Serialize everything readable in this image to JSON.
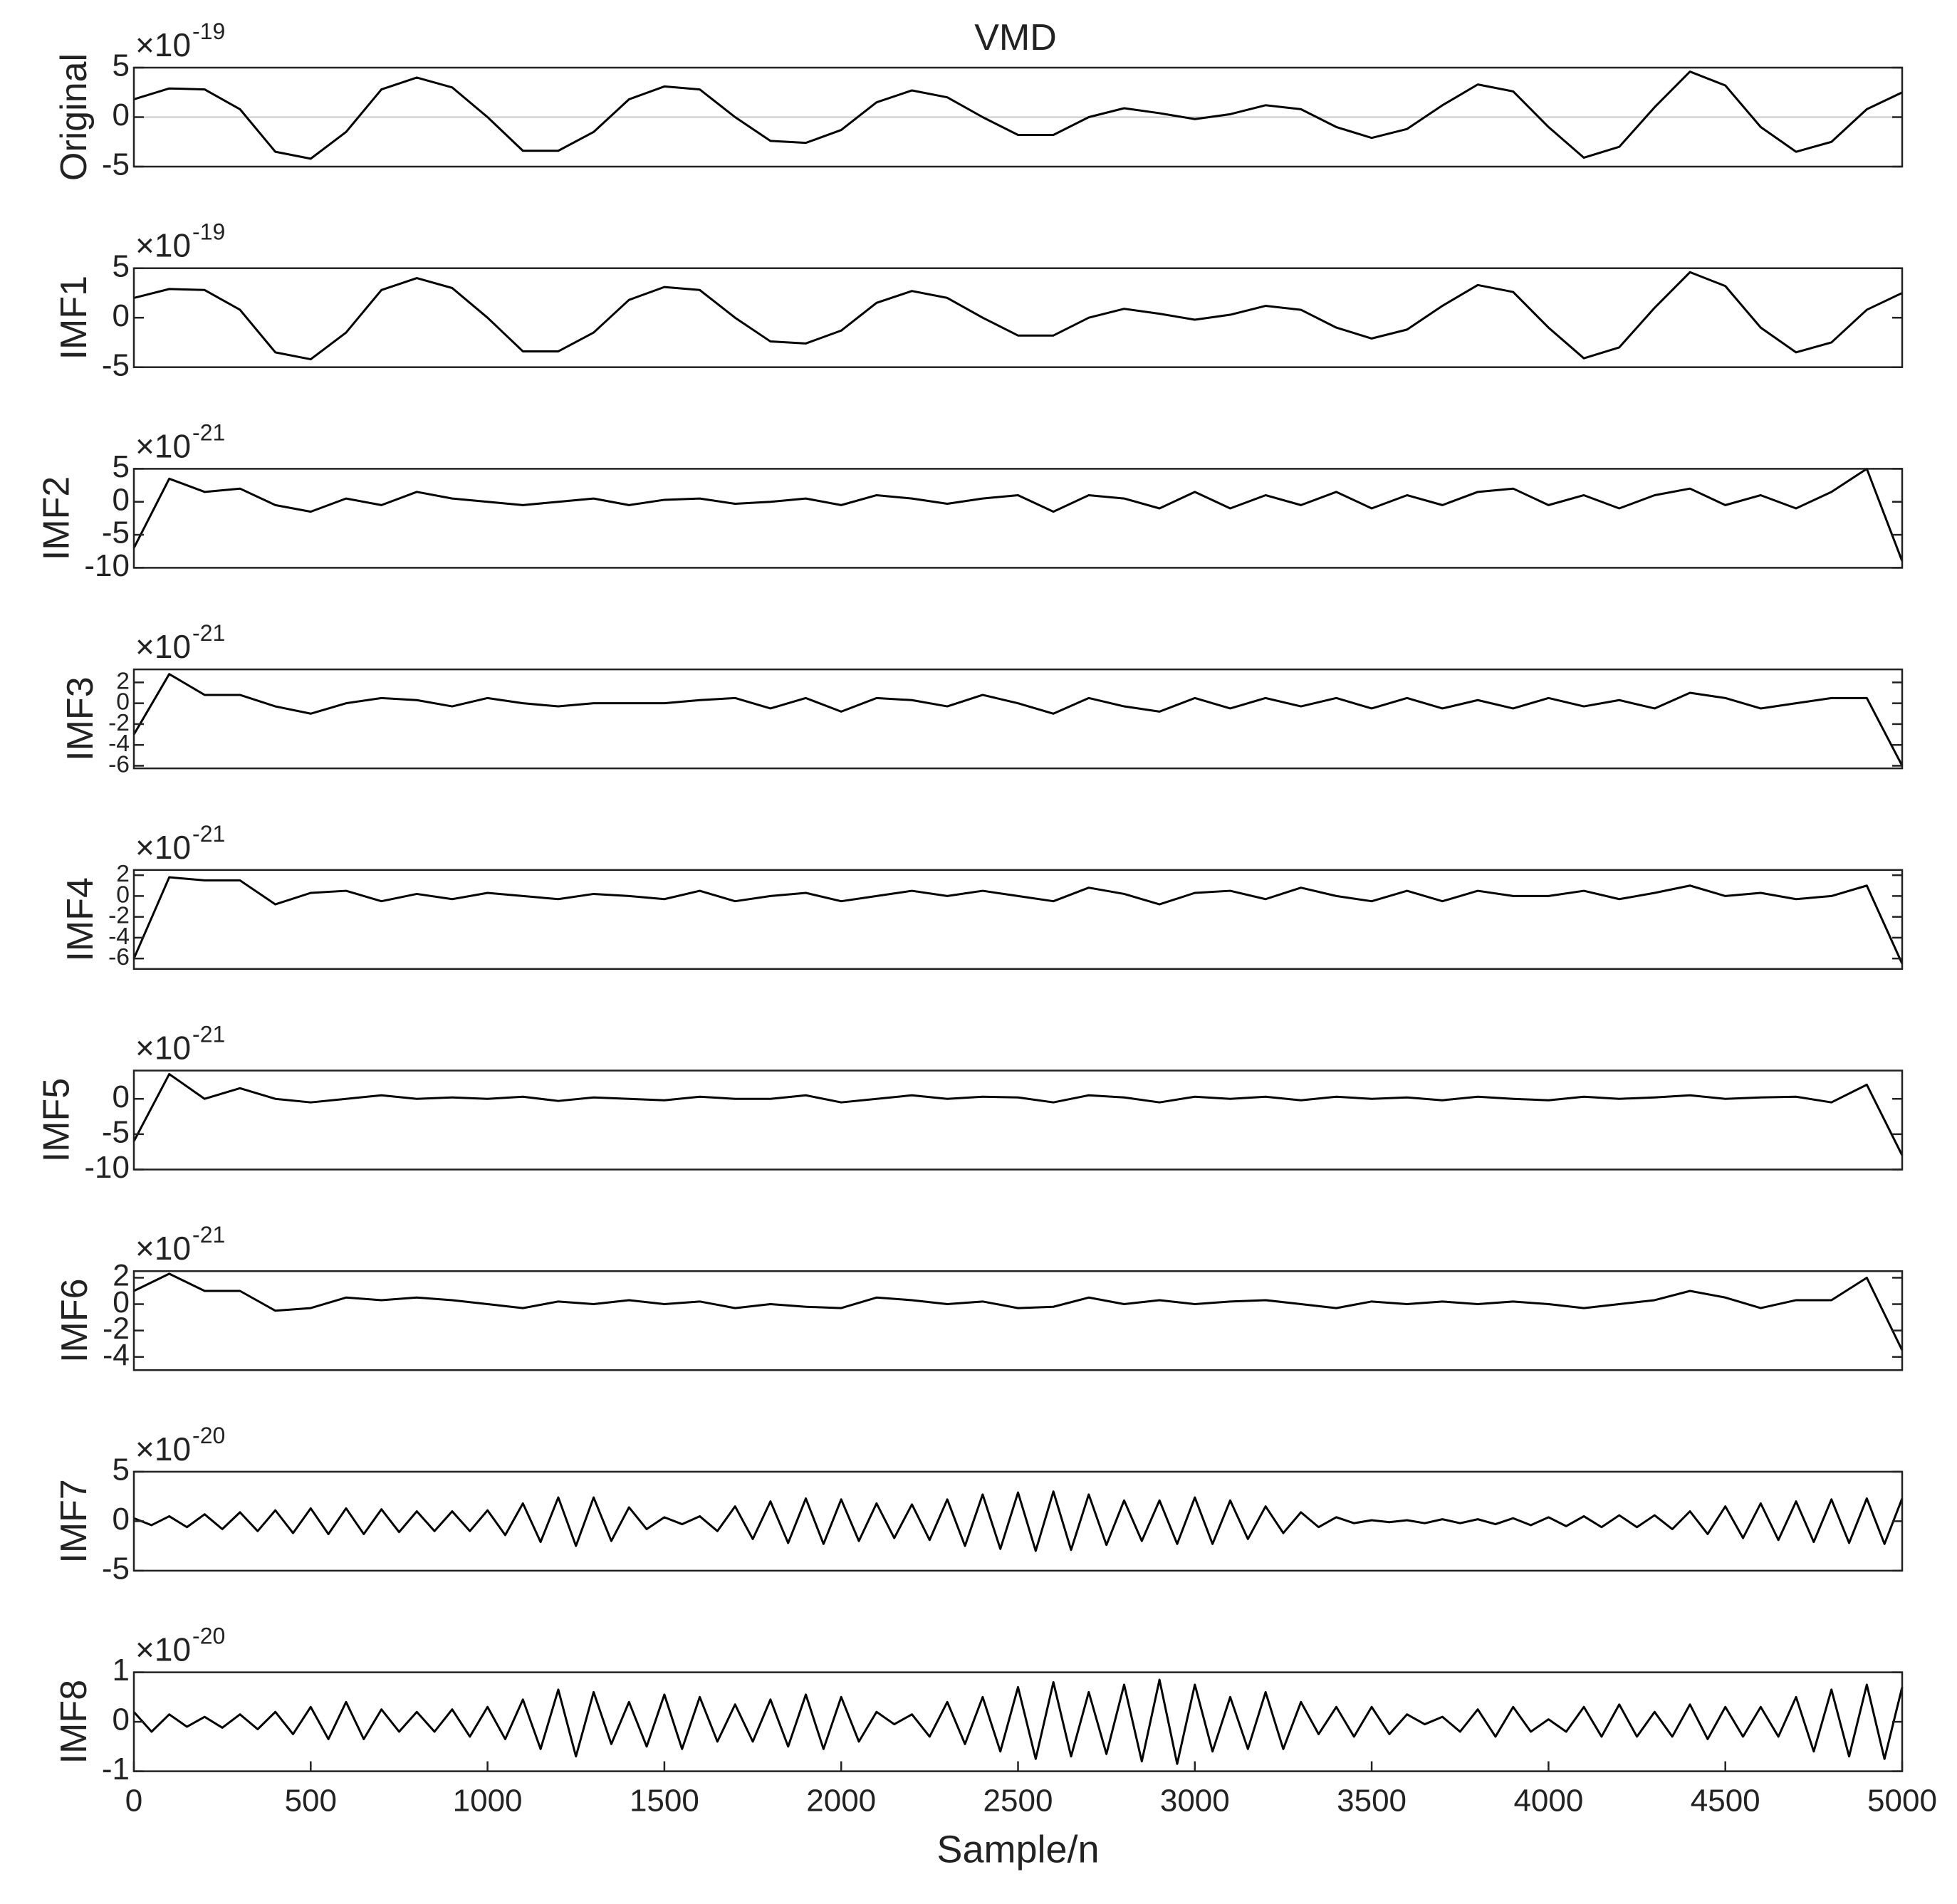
{
  "chart_data": [
    {
      "type": "line",
      "title": "VMD",
      "ylabel": "Original",
      "scale_base": "×10",
      "scale_exponent": "-19",
      "color": "#000000",
      "zero_line": true,
      "xlim": [
        0,
        5000
      ],
      "ylim": [
        -5,
        5
      ],
      "yticks": [
        -5,
        0,
        5
      ],
      "x": [
        0,
        100,
        200,
        300,
        400,
        500,
        600,
        700,
        800,
        900,
        1000,
        1100,
        1200,
        1300,
        1400,
        1500,
        1600,
        1700,
        1800,
        1900,
        2000,
        2100,
        2200,
        2300,
        2400,
        2500,
        2600,
        2700,
        2800,
        2900,
        3000,
        3100,
        3200,
        3300,
        3400,
        3500,
        3600,
        3700,
        3800,
        3900,
        4000,
        4100,
        4200,
        4300,
        4400,
        4500,
        4600,
        4700,
        4800,
        4900,
        5000
      ],
      "values": [
        1.8,
        2.9,
        2.8,
        0.8,
        -3.5,
        -4.2,
        -1.5,
        2.8,
        4.0,
        3.0,
        0,
        -3.4,
        -3.4,
        -1.5,
        1.8,
        3.1,
        2.8,
        0,
        -2.4,
        -2.6,
        -1.3,
        1.5,
        2.7,
        2.0,
        0,
        -1.8,
        -1.8,
        0,
        0.9,
        0.4,
        -0.2,
        0.3,
        1.2,
        0.8,
        -1.0,
        -2.1,
        -1.2,
        1.2,
        3.3,
        2.6,
        -1.0,
        -4.1,
        -3.0,
        1.0,
        4.6,
        3.2,
        -1.0,
        -3.5,
        -2.5,
        0.8,
        2.5
      ]
    },
    {
      "type": "line",
      "ylabel": "IMF1",
      "scale_base": "×10",
      "scale_exponent": "-19",
      "color": "#000000",
      "xlim": [
        0,
        5000
      ],
      "ylim": [
        -5,
        5
      ],
      "yticks": [
        -5,
        0,
        5
      ],
      "x": [
        0,
        100,
        200,
        300,
        400,
        500,
        600,
        700,
        800,
        900,
        1000,
        1100,
        1200,
        1300,
        1400,
        1500,
        1600,
        1700,
        1800,
        1900,
        2000,
        2100,
        2200,
        2300,
        2400,
        2500,
        2600,
        2700,
        2800,
        2900,
        3000,
        3100,
        3200,
        3300,
        3400,
        3500,
        3600,
        3700,
        3800,
        3900,
        4000,
        4100,
        4200,
        4300,
        4400,
        4500,
        4600,
        4700,
        4800,
        4900,
        5000
      ],
      "values": [
        2.0,
        2.9,
        2.8,
        0.8,
        -3.5,
        -4.2,
        -1.5,
        2.8,
        4.0,
        3.0,
        0,
        -3.4,
        -3.4,
        -1.5,
        1.8,
        3.1,
        2.8,
        0,
        -2.4,
        -2.6,
        -1.3,
        1.5,
        2.7,
        2.0,
        0,
        -1.8,
        -1.8,
        0,
        0.9,
        0.4,
        -0.2,
        0.3,
        1.2,
        0.8,
        -1.0,
        -2.1,
        -1.2,
        1.2,
        3.3,
        2.6,
        -1.0,
        -4.1,
        -3.0,
        1.0,
        4.6,
        3.2,
        -1.0,
        -3.5,
        -2.5,
        0.8,
        2.5
      ]
    },
    {
      "type": "line",
      "ylabel": "IMF2",
      "scale_base": "×10",
      "scale_exponent": "-21",
      "color": "#000000",
      "xlim": [
        0,
        5000
      ],
      "ylim": [
        -10,
        5
      ],
      "yticks": [
        -10,
        -5,
        0,
        5
      ],
      "x": [
        0,
        100,
        200,
        300,
        400,
        500,
        600,
        700,
        800,
        900,
        1000,
        1100,
        1200,
        1300,
        1400,
        1500,
        1600,
        1700,
        1800,
        1900,
        2000,
        2100,
        2200,
        2300,
        2400,
        2500,
        2600,
        2700,
        2800,
        2900,
        3000,
        3100,
        3200,
        3300,
        3400,
        3500,
        3600,
        3700,
        3800,
        3900,
        4000,
        4100,
        4200,
        4300,
        4400,
        4500,
        4600,
        4700,
        4800,
        4900,
        5000
      ],
      "values": [
        -7,
        3.5,
        1.5,
        2.0,
        -0.5,
        -1.5,
        0.5,
        -0.5,
        1.5,
        0.5,
        0,
        -0.5,
        0,
        0.5,
        -0.5,
        0.3,
        0.5,
        -0.3,
        0,
        0.5,
        -0.5,
        1.0,
        0.5,
        -0.3,
        0.5,
        1.0,
        -1.5,
        1.0,
        0.5,
        -1.0,
        1.5,
        -1.0,
        1.0,
        -0.5,
        1.5,
        -1.0,
        1.0,
        -0.5,
        1.5,
        2.0,
        -0.5,
        1.0,
        -1.0,
        1.0,
        2.0,
        -0.5,
        1.0,
        -1.0,
        1.5,
        5.0,
        -9
      ]
    },
    {
      "type": "line",
      "ylabel": "IMF3",
      "scale_base": "×10",
      "scale_exponent": "-21",
      "color": "#000000",
      "xlim": [
        0,
        5000
      ],
      "ylim": [
        -6.25,
        3.25
      ],
      "yticks": [
        -6,
        -4,
        -2,
        0,
        2
      ],
      "x": [
        0,
        100,
        200,
        300,
        400,
        500,
        600,
        700,
        800,
        900,
        1000,
        1100,
        1200,
        1300,
        1400,
        1500,
        1600,
        1700,
        1800,
        1900,
        2000,
        2100,
        2200,
        2300,
        2400,
        2500,
        2600,
        2700,
        2800,
        2900,
        3000,
        3100,
        3200,
        3300,
        3400,
        3500,
        3600,
        3700,
        3800,
        3900,
        4000,
        4100,
        4200,
        4300,
        4400,
        4500,
        4600,
        4700,
        4800,
        4900,
        5000
      ],
      "values": [
        -3,
        2.8,
        0.8,
        0.8,
        -0.3,
        -1.0,
        0,
        0.5,
        0.3,
        -0.3,
        0.5,
        0,
        -0.3,
        0,
        0,
        0,
        0.3,
        0.5,
        -0.5,
        0.5,
        -0.8,
        0.5,
        0.3,
        -0.3,
        0.8,
        0,
        -1.0,
        0.5,
        -0.3,
        -0.8,
        0.5,
        -0.5,
        0.5,
        -0.3,
        0.5,
        -0.5,
        0.5,
        -0.5,
        0.3,
        -0.5,
        0.5,
        -0.3,
        0.3,
        -0.5,
        1.0,
        0.5,
        -0.5,
        0,
        0.5,
        0.5,
        -6
      ]
    },
    {
      "type": "line",
      "ylabel": "IMF4",
      "scale_base": "×10",
      "scale_exponent": "-21",
      "color": "#000000",
      "xlim": [
        0,
        5000
      ],
      "ylim": [
        -7,
        2.5
      ],
      "yticks": [
        -6,
        -4,
        -2,
        0,
        2
      ],
      "x": [
        0,
        100,
        200,
        300,
        400,
        500,
        600,
        700,
        800,
        900,
        1000,
        1100,
        1200,
        1300,
        1400,
        1500,
        1600,
        1700,
        1800,
        1900,
        2000,
        2100,
        2200,
        2300,
        2400,
        2500,
        2600,
        2700,
        2800,
        2900,
        3000,
        3100,
        3200,
        3300,
        3400,
        3500,
        3600,
        3700,
        3800,
        3900,
        4000,
        4100,
        4200,
        4300,
        4400,
        4500,
        4600,
        4700,
        4800,
        4900,
        5000
      ],
      "values": [
        -6,
        1.8,
        1.5,
        1.5,
        -0.8,
        0.3,
        0.5,
        -0.5,
        0.2,
        -0.3,
        0.3,
        0,
        -0.3,
        0.2,
        0,
        -0.3,
        0.5,
        -0.5,
        0,
        0.3,
        -0.5,
        0,
        0.5,
        0,
        0.5,
        0,
        -0.5,
        0.8,
        0.2,
        -0.8,
        0.3,
        0.5,
        -0.3,
        0.8,
        0,
        -0.5,
        0.5,
        -0.5,
        0.5,
        0,
        0,
        0.5,
        -0.3,
        0.3,
        1.0,
        0,
        0.3,
        -0.3,
        0,
        1.0,
        -6.5
      ]
    },
    {
      "type": "line",
      "ylabel": "IMF5",
      "scale_base": "×10",
      "scale_exponent": "-21",
      "color": "#000000",
      "xlim": [
        0,
        5000
      ],
      "ylim": [
        -10,
        4
      ],
      "yticks": [
        -10,
        -5,
        0
      ],
      "x": [
        0,
        100,
        200,
        300,
        400,
        500,
        600,
        700,
        800,
        900,
        1000,
        1100,
        1200,
        1300,
        1400,
        1500,
        1600,
        1700,
        1800,
        1900,
        2000,
        2100,
        2200,
        2300,
        2400,
        2500,
        2600,
        2700,
        2800,
        2900,
        3000,
        3100,
        3200,
        3300,
        3400,
        3500,
        3600,
        3700,
        3800,
        3900,
        4000,
        4100,
        4200,
        4300,
        4400,
        4500,
        4600,
        4700,
        4800,
        4900,
        5000
      ],
      "values": [
        -6,
        3.5,
        0,
        1.5,
        0,
        -0.5,
        0,
        0.5,
        0,
        0.2,
        0,
        0.3,
        -0.3,
        0.2,
        0,
        -0.2,
        0.3,
        0,
        0,
        0.5,
        -0.5,
        0,
        0.5,
        0,
        0.3,
        0.2,
        -0.5,
        0.5,
        0.2,
        -0.5,
        0.3,
        0,
        0.3,
        -0.2,
        0.3,
        0,
        0.2,
        -0.2,
        0.3,
        0,
        -0.2,
        0.3,
        0,
        0.2,
        0.5,
        0,
        0.2,
        0.3,
        -0.5,
        2.0,
        -8
      ]
    },
    {
      "type": "line",
      "ylabel": "IMF6",
      "scale_base": "×10",
      "scale_exponent": "-21",
      "color": "#000000",
      "xlim": [
        0,
        5000
      ],
      "ylim": [
        -5,
        2.5
      ],
      "yticks": [
        -4,
        -2,
        0,
        2
      ],
      "x": [
        0,
        100,
        200,
        300,
        400,
        500,
        600,
        700,
        800,
        900,
        1000,
        1100,
        1200,
        1300,
        1400,
        1500,
        1600,
        1700,
        1800,
        1900,
        2000,
        2100,
        2200,
        2300,
        2400,
        2500,
        2600,
        2700,
        2800,
        2900,
        3000,
        3100,
        3200,
        3300,
        3400,
        3500,
        3600,
        3700,
        3800,
        3900,
        4000,
        4100,
        4200,
        4300,
        4400,
        4500,
        4600,
        4700,
        4800,
        4900,
        5000
      ],
      "values": [
        1,
        2.3,
        1.0,
        1.0,
        -0.5,
        -0.3,
        0.5,
        0.3,
        0.5,
        0.3,
        0,
        -0.3,
        0.2,
        0,
        0.3,
        0,
        0.2,
        -0.3,
        0,
        -0.2,
        -0.3,
        0.5,
        0.3,
        0,
        0.2,
        -0.3,
        -0.2,
        0.5,
        0,
        0.3,
        0,
        0.2,
        0.3,
        0,
        -0.3,
        0.2,
        0,
        0.2,
        0,
        0.2,
        0,
        -0.3,
        0,
        0.3,
        1.0,
        0.5,
        -0.3,
        0.3,
        0.3,
        2.0,
        -3.5
      ]
    },
    {
      "type": "line",
      "ylabel": "IMF7",
      "scale_base": "×10",
      "scale_exponent": "-20",
      "color": "#000000",
      "xlim": [
        0,
        5000
      ],
      "ylim": [
        -5,
        5
      ],
      "yticks": [
        -5,
        0,
        5
      ],
      "x": [
        0,
        50,
        100,
        150,
        200,
        250,
        300,
        350,
        400,
        450,
        500,
        550,
        600,
        650,
        700,
        750,
        800,
        850,
        900,
        950,
        1000,
        1050,
        1100,
        1150,
        1200,
        1250,
        1300,
        1350,
        1400,
        1450,
        1500,
        1550,
        1600,
        1650,
        1700,
        1750,
        1800,
        1850,
        1900,
        1950,
        2000,
        2050,
        2100,
        2150,
        2200,
        2250,
        2300,
        2350,
        2400,
        2450,
        2500,
        2550,
        2600,
        2650,
        2700,
        2750,
        2800,
        2850,
        2900,
        2950,
        3000,
        3050,
        3100,
        3150,
        3200,
        3250,
        3300,
        3350,
        3400,
        3450,
        3500,
        3550,
        3600,
        3650,
        3700,
        3750,
        3800,
        3850,
        3900,
        3950,
        4000,
        4050,
        4100,
        4150,
        4200,
        4250,
        4300,
        4350,
        4400,
        4450,
        4500,
        4550,
        4600,
        4650,
        4700,
        4750,
        4800,
        4850,
        4900,
        4950,
        5000
      ],
      "values": [
        0.3,
        -0.4,
        0.5,
        -0.6,
        0.7,
        -0.8,
        0.9,
        -1.0,
        1.1,
        -1.2,
        1.3,
        -1.3,
        1.3,
        -1.3,
        1.2,
        -1.1,
        1.0,
        -1.0,
        1.0,
        -1.0,
        1.1,
        -1.4,
        1.8,
        -2.1,
        2.4,
        -2.5,
        2.4,
        -2.0,
        1.4,
        -0.8,
        0.4,
        -0.3,
        0.5,
        -1.0,
        1.5,
        -1.8,
        2.0,
        -2.2,
        2.3,
        -2.3,
        2.2,
        -2.0,
        1.8,
        -1.7,
        1.7,
        -1.9,
        2.2,
        -2.5,
        2.7,
        -2.8,
        2.9,
        -3.0,
        3.0,
        -2.9,
        2.7,
        -2.4,
        2.1,
        -2.0,
        2.1,
        -2.3,
        2.4,
        -2.3,
        2.1,
        -1.8,
        1.5,
        -1.2,
        0.9,
        -0.6,
        0.4,
        -0.2,
        0.1,
        -0.1,
        0.1,
        -0.2,
        0.2,
        -0.2,
        0.2,
        -0.3,
        0.3,
        -0.4,
        0.4,
        -0.5,
        0.5,
        -0.6,
        0.6,
        -0.6,
        0.6,
        -0.8,
        1.0,
        -1.3,
        1.5,
        -1.7,
        1.8,
        -1.9,
        2.0,
        -2.1,
        2.2,
        -2.2,
        2.3,
        -2.3,
        2.3
      ]
    },
    {
      "type": "line",
      "ylabel": "IMF8",
      "scale_base": "×10",
      "scale_exponent": "-20",
      "color": "#000000",
      "xlabel": "Sample/n",
      "xlim": [
        0,
        5000
      ],
      "ylim": [
        -1,
        1
      ],
      "yticks": [
        -1,
        0,
        1
      ],
      "xticks": [
        0,
        500,
        1000,
        1500,
        2000,
        2500,
        3000,
        3500,
        4000,
        4500,
        5000
      ],
      "x": [
        0,
        50,
        100,
        150,
        200,
        250,
        300,
        350,
        400,
        450,
        500,
        550,
        600,
        650,
        700,
        750,
        800,
        850,
        900,
        950,
        1000,
        1050,
        1100,
        1150,
        1200,
        1250,
        1300,
        1350,
        1400,
        1450,
        1500,
        1550,
        1600,
        1650,
        1700,
        1750,
        1800,
        1850,
        1900,
        1950,
        2000,
        2050,
        2100,
        2150,
        2200,
        2250,
        2300,
        2350,
        2400,
        2450,
        2500,
        2550,
        2600,
        2650,
        2700,
        2750,
        2800,
        2850,
        2900,
        2950,
        3000,
        3050,
        3100,
        3150,
        3200,
        3250,
        3300,
        3350,
        3400,
        3450,
        3500,
        3550,
        3600,
        3650,
        3700,
        3750,
        3800,
        3850,
        3900,
        3950,
        4000,
        4050,
        4100,
        4150,
        4200,
        4250,
        4300,
        4350,
        4400,
        4450,
        4500,
        4550,
        4600,
        4650,
        4700,
        4750,
        4800,
        4850,
        4900,
        4950,
        5000
      ],
      "values": [
        0.2,
        -0.2,
        0.15,
        -0.1,
        0.1,
        -0.12,
        0.15,
        -0.15,
        0.2,
        -0.25,
        0.3,
        -0.35,
        0.4,
        -0.35,
        0.25,
        -0.2,
        0.2,
        -0.2,
        0.25,
        -0.3,
        0.3,
        -0.35,
        0.45,
        -0.55,
        0.65,
        -0.7,
        0.6,
        -0.45,
        0.4,
        -0.5,
        0.55,
        -0.55,
        0.5,
        -0.4,
        0.35,
        -0.4,
        0.45,
        -0.5,
        0.55,
        -0.55,
        0.5,
        -0.4,
        0.2,
        -0.05,
        0.15,
        -0.3,
        0.4,
        -0.45,
        0.5,
        -0.6,
        0.7,
        -0.75,
        0.8,
        -0.7,
        0.6,
        -0.65,
        0.75,
        -0.8,
        0.85,
        -0.85,
        0.75,
        -0.6,
        0.5,
        -0.55,
        0.6,
        -0.55,
        0.4,
        -0.25,
        0.3,
        -0.3,
        0.3,
        -0.25,
        0.15,
        -0.05,
        0.1,
        -0.2,
        0.25,
        -0.3,
        0.3,
        -0.2,
        0.05,
        -0.2,
        0.3,
        -0.3,
        0.35,
        -0.3,
        0.2,
        -0.3,
        0.35,
        -0.35,
        0.3,
        -0.3,
        0.3,
        -0.3,
        0.5,
        -0.6,
        0.65,
        -0.7,
        0.75,
        -0.75,
        0.7
      ]
    }
  ]
}
